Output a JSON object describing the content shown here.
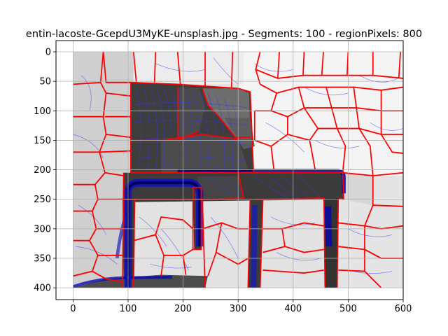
{
  "chart_data": {
    "type": "heatmap",
    "title": "entin-lacoste-GcepdU3MyKE-unsplash.jpg - Segments: 100 - regionPixels: 800",
    "xlabel": "",
    "ylabel": "",
    "xlim": [
      -31,
      600
    ],
    "ylim": [
      420,
      -19
    ],
    "xticks": [
      0,
      100,
      200,
      300,
      400,
      500,
      600
    ],
    "yticks": [
      0,
      50,
      100,
      150,
      200,
      250,
      300,
      350,
      400
    ],
    "grid": true,
    "image_extent": {
      "x": [
        0,
        600
      ],
      "y": [
        0,
        400
      ]
    },
    "colors": {
      "segment_boundary": "#ff0000",
      "contour": "#3030ff",
      "dark_region": "#3a3a3a",
      "light_region": "#f3f3f3",
      "mid_region": "#cfcfcf",
      "grid": "#b0b0b0"
    }
  }
}
